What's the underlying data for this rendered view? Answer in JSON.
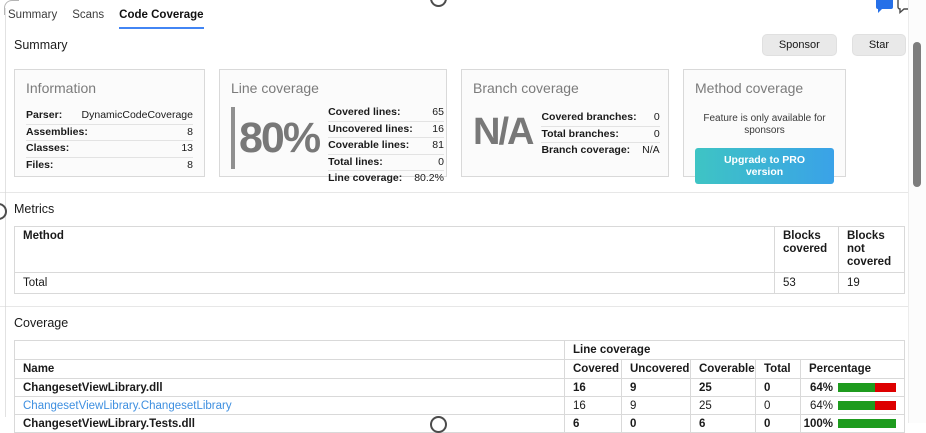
{
  "tabs": [
    {
      "label": "Summary",
      "active": false
    },
    {
      "label": "Scans",
      "active": false
    },
    {
      "label": "Code Coverage",
      "active": true
    }
  ],
  "header_icons": [
    {
      "name": "chat-bubble-icon",
      "color": "#2670e8"
    },
    {
      "name": "add-comment-icon",
      "badge_color": "#2ea44f"
    }
  ],
  "summary_section": {
    "title": "Summary",
    "buttons": {
      "sponsor": "Sponsor",
      "star": "Star"
    },
    "cards": {
      "information": {
        "title": "Information",
        "rows": [
          [
            "Parser:",
            "DynamicCodeCoverage"
          ],
          [
            "Assemblies:",
            "8"
          ],
          [
            "Classes:",
            "13"
          ],
          [
            "Files:",
            "8"
          ]
        ]
      },
      "line_coverage": {
        "title": "Line coverage",
        "big_value": "80%",
        "rows": [
          [
            "Covered lines:",
            "65"
          ],
          [
            "Uncovered lines:",
            "16"
          ],
          [
            "Coverable lines:",
            "81"
          ],
          [
            "Total lines:",
            "0"
          ],
          [
            "Line coverage:",
            "80.2%"
          ]
        ]
      },
      "branch_coverage": {
        "title": "Branch coverage",
        "big_value": "N/A",
        "rows": [
          [
            "Covered branches:",
            "0"
          ],
          [
            "Total branches:",
            "0"
          ],
          [
            "Branch coverage:",
            "N/A"
          ]
        ]
      },
      "method_coverage": {
        "title": "Method coverage",
        "message": "Feature is only available for sponsors",
        "button_label": "Upgrade to PRO version"
      }
    }
  },
  "metrics_section": {
    "title": "Metrics",
    "table": {
      "headers": [
        "Method",
        "Blocks covered",
        "Blocks not covered"
      ],
      "rows": [
        {
          "method": "Total",
          "blocks_covered": "53",
          "blocks_not_covered": "19"
        }
      ]
    }
  },
  "coverage_section": {
    "title": "Coverage",
    "table": {
      "group_header": "Line coverage",
      "headers": [
        "Name",
        "Covered",
        "Uncovered",
        "Coverable",
        "Total",
        "Percentage"
      ],
      "rows": [
        {
          "name": "ChangesetViewLibrary.dll",
          "kind": "assembly",
          "covered": "16",
          "uncovered": "9",
          "coverable": "25",
          "total": "0",
          "percentage": "64%",
          "pct": 64
        },
        {
          "name": "ChangesetViewLibrary.ChangesetLibrary",
          "kind": "class",
          "covered": "16",
          "uncovered": "9",
          "coverable": "25",
          "total": "0",
          "percentage": "64%",
          "pct": 64
        },
        {
          "name": "ChangesetViewLibrary.Tests.dll",
          "kind": "assembly",
          "covered": "6",
          "uncovered": "0",
          "coverable": "6",
          "total": "0",
          "percentage": "100%",
          "pct": 100
        }
      ]
    }
  },
  "colors": {
    "tab_underline": "#4285f4",
    "link_blue": "#3e8fe0",
    "bar_green": "#1e9b1e",
    "bar_red": "#dd0000",
    "pro_button_gradient": [
      "#3ec4c4",
      "#3aa2e8"
    ],
    "scroll_thumb": "#7d7d7d"
  }
}
